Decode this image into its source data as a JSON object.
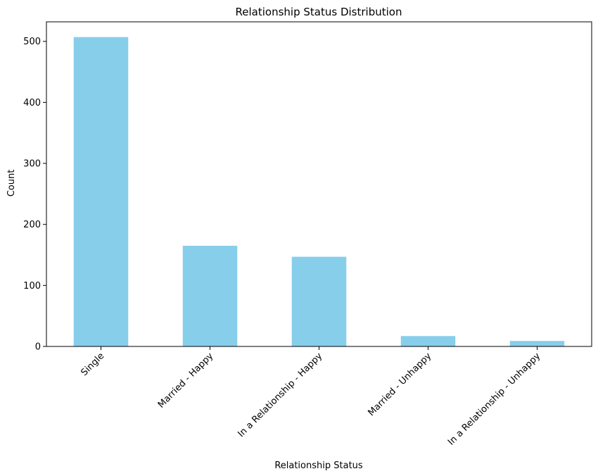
{
  "chart_data": {
    "type": "bar",
    "title": "Relationship Status Distribution",
    "xlabel": "Relationship Status",
    "ylabel": "Count",
    "categories": [
      "Single",
      "Married - Happy",
      "In a Relationship - Happy",
      "Married - Unhappy",
      "In a Relationship - Unhappy"
    ],
    "values": [
      507,
      165,
      147,
      17,
      9
    ],
    "ylim": [
      0,
      532
    ],
    "yticks": [
      0,
      100,
      200,
      300,
      400,
      500
    ],
    "bar_color": "#87ceeb",
    "grid": false,
    "xtick_rotation_deg": 45
  }
}
